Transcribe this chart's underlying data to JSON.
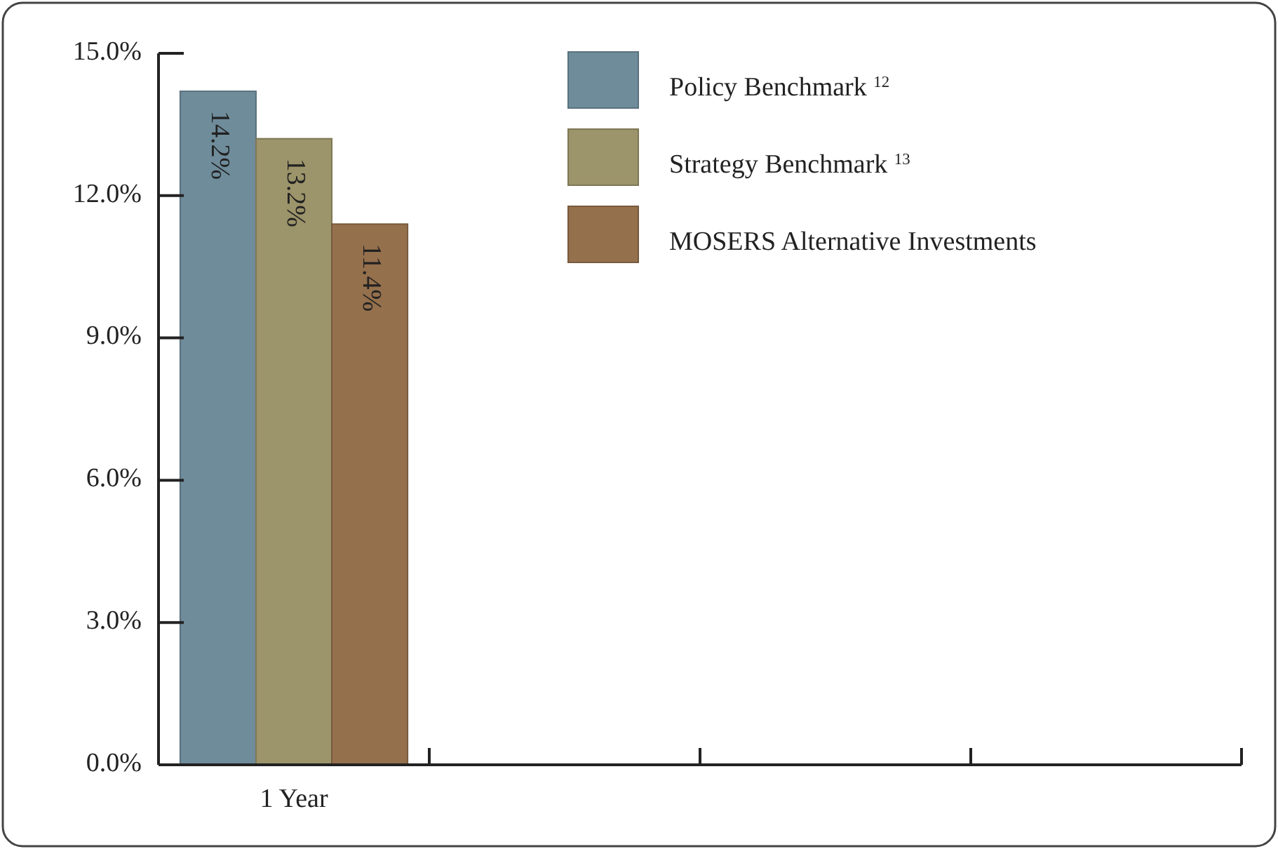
{
  "chart_data": {
    "type": "bar",
    "categories": [
      "1 Year",
      null,
      null,
      null
    ],
    "series": [
      {
        "name": "Policy Benchmark $^{12}$",
        "color": "#6f8c9b",
        "values": [
          14.2,
          null,
          null,
          null
        ]
      },
      {
        "name": "Strategy Benchmark $^{13}$",
        "color": "#9c946a",
        "values": [
          13.2,
          null,
          null,
          null
        ]
      },
      {
        "name": "MOSERS Alternative Investments",
        "color": "#95704c",
        "values": [
          11.4,
          null,
          null,
          null
        ]
      }
    ],
    "ylim": [
      0,
      15
    ],
    "yticks": [
      {
        "value": 0,
        "label": "0.0%"
      },
      {
        "value": 3,
        "label": "3.0%"
      },
      {
        "value": 6,
        "label": "6.0%"
      },
      {
        "value": 9,
        "label": "9.0%"
      },
      {
        "value": 12,
        "label": "12.0%"
      },
      {
        "value": 15,
        "label": "15.0%"
      }
    ],
    "value_labels": [
      [
        "14.2%",
        null,
        null,
        null
      ],
      [
        "13.2%",
        null,
        null,
        null
      ],
      [
        "11.4%",
        null,
        null,
        null
      ]
    ],
    "grid": false,
    "legend": "top"
  }
}
